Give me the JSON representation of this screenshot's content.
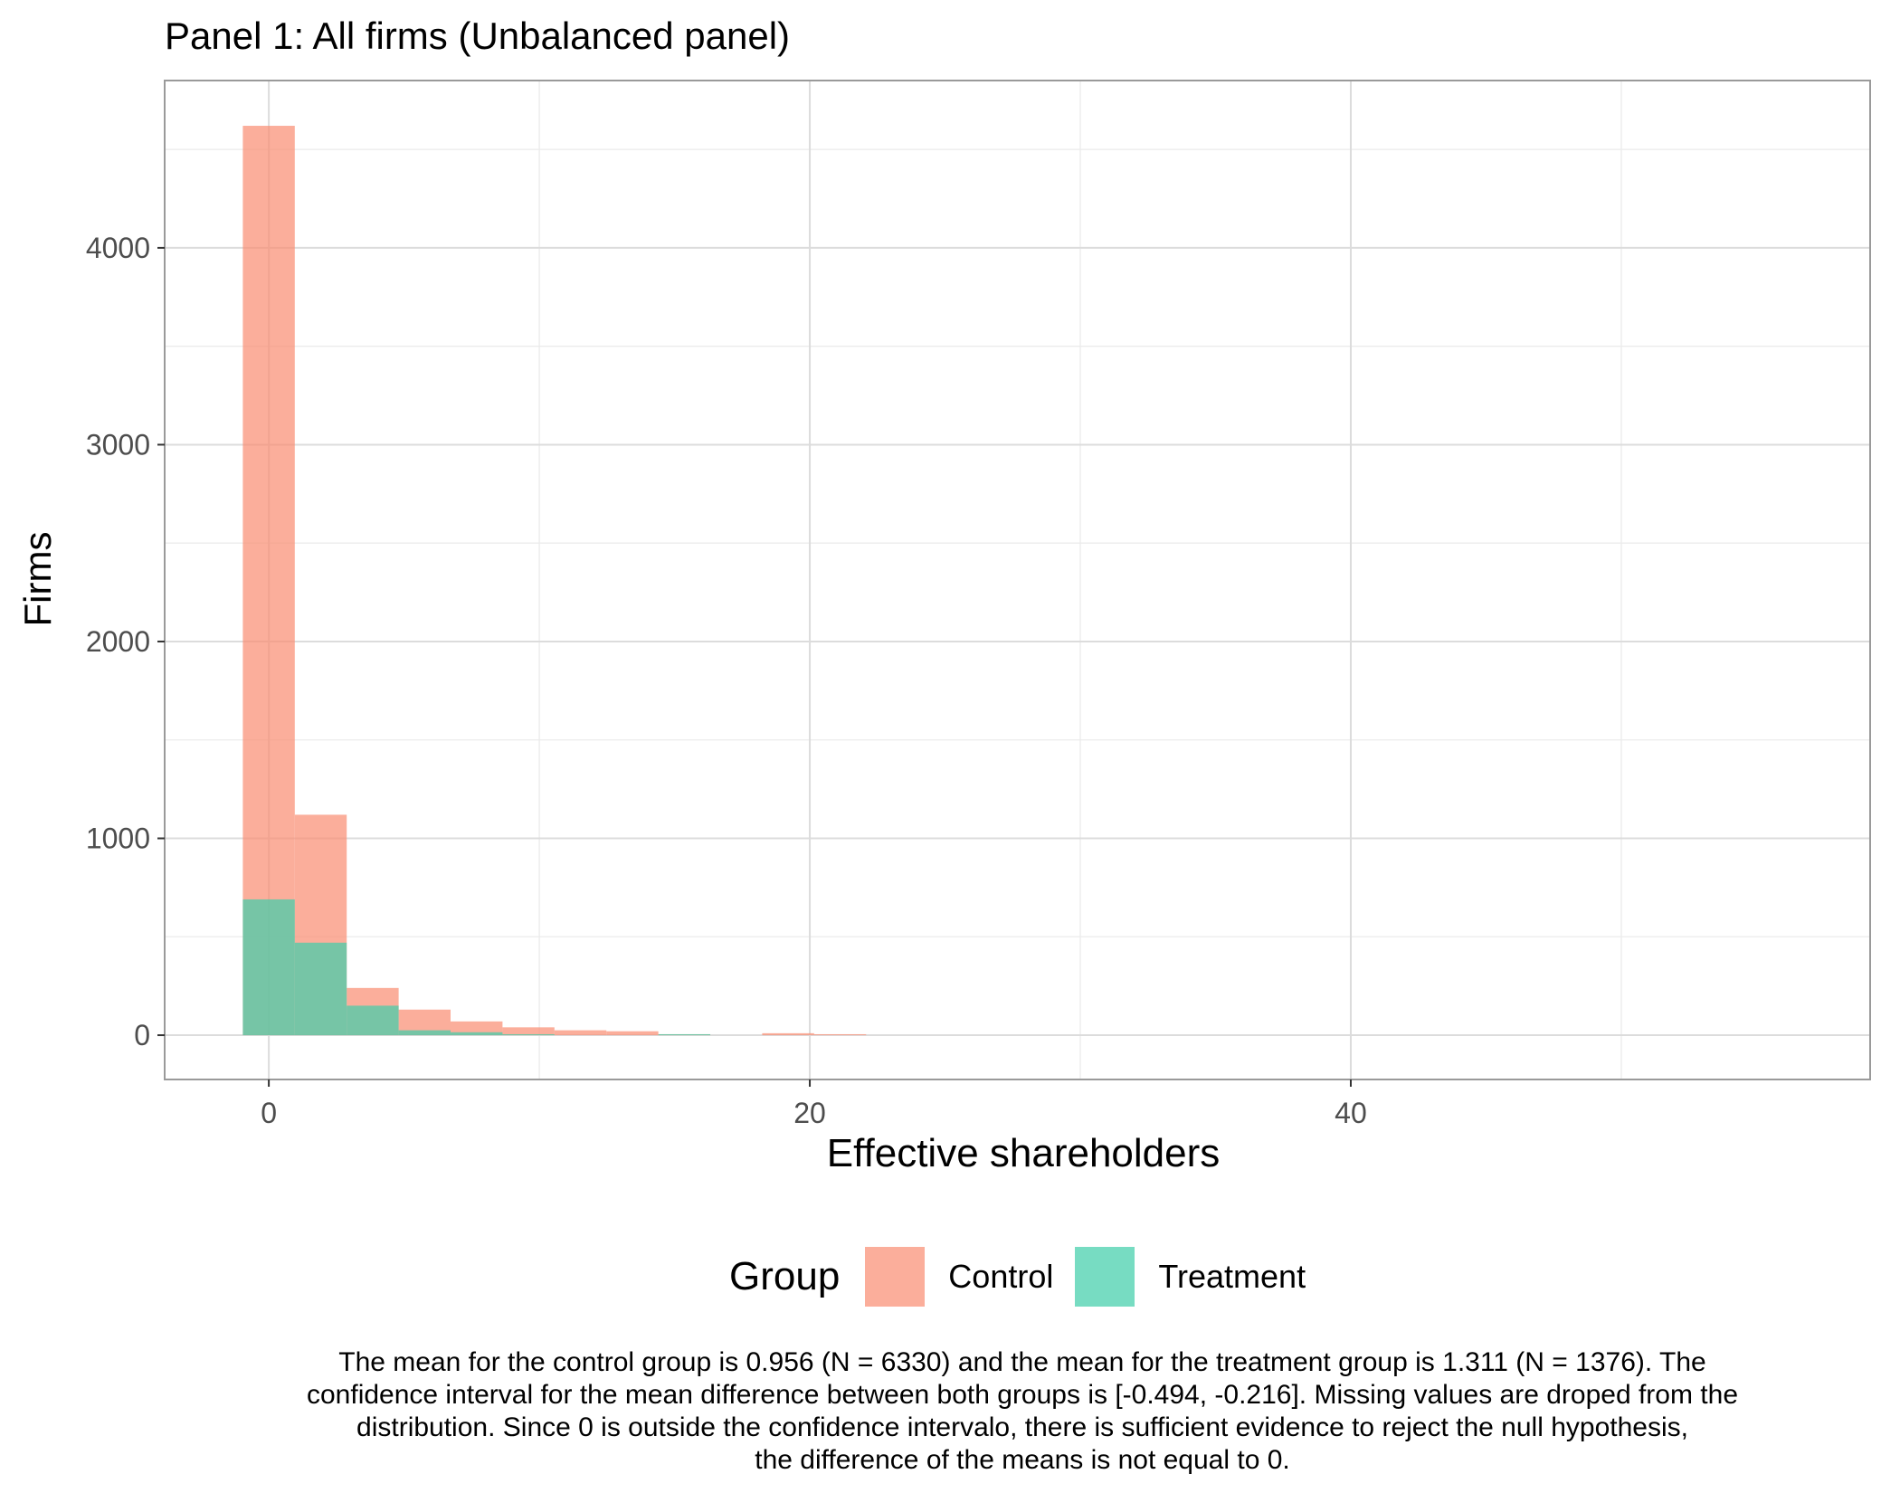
{
  "title": "Panel 1: All firms (Unbalanced panel)",
  "colors": {
    "control": "#FA8F75",
    "treatment": "#43CFAA",
    "grid": "#DCDCDC",
    "panel_border": "#9A9A9A",
    "tick_text": "#4D4D4D"
  },
  "legend": {
    "title": "Group",
    "items": [
      {
        "label": "Control",
        "color": "#FA8F75"
      },
      {
        "label": "Treatment",
        "color": "#43CFAA"
      }
    ]
  },
  "caption": {
    "lines": [
      "The mean for the control group is 0.956 (N = 6330) and the mean for the treatment group is 1.311 (N = 1376). The",
      "confidence interval for the mean difference between both groups is [-0.494, -0.216]. Missing values are droped from the",
      "distribution. Since 0 is outside the confidence intervalo, there is sufficient evidence to reject the null hypothesis,",
      "the difference of the means is not equal to 0."
    ]
  },
  "chart_data": {
    "type": "bar",
    "title": "Panel 1: All firms (Unbalanced panel)",
    "xlabel": "Effective shareholders",
    "ylabel": "Firms",
    "xlim": [
      -3.85,
      59.2
    ],
    "ylim": [
      -225,
      4850
    ],
    "x_ticks": [
      0,
      20,
      40
    ],
    "y_ticks": [
      0,
      1000,
      2000,
      3000,
      4000
    ],
    "grid": true,
    "legend_position": "bottom",
    "bin_width": 1.92,
    "series": [
      {
        "name": "Control",
        "bins": [
          {
            "x0": -0.96,
            "x1": 0.96,
            "value": 4620
          },
          {
            "x0": 0.96,
            "x1": 2.88,
            "value": 1120
          },
          {
            "x0": 2.88,
            "x1": 4.8,
            "value": 240
          },
          {
            "x0": 4.8,
            "x1": 6.72,
            "value": 130
          },
          {
            "x0": 6.72,
            "x1": 8.64,
            "value": 70
          },
          {
            "x0": 8.64,
            "x1": 10.56,
            "value": 40
          },
          {
            "x0": 10.56,
            "x1": 12.48,
            "value": 25
          },
          {
            "x0": 12.48,
            "x1": 14.4,
            "value": 20
          },
          {
            "x0": 14.4,
            "x1": 16.32,
            "value": 5
          },
          {
            "x0": 18.24,
            "x1": 20.16,
            "value": 10
          },
          {
            "x0": 20.16,
            "x1": 22.08,
            "value": 5
          }
        ]
      },
      {
        "name": "Treatment",
        "bins": [
          {
            "x0": -0.96,
            "x1": 0.96,
            "value": 690
          },
          {
            "x0": 0.96,
            "x1": 2.88,
            "value": 470
          },
          {
            "x0": 2.88,
            "x1": 4.8,
            "value": 150
          },
          {
            "x0": 4.8,
            "x1": 6.72,
            "value": 25
          },
          {
            "x0": 6.72,
            "x1": 8.64,
            "value": 15
          },
          {
            "x0": 8.64,
            "x1": 10.56,
            "value": 5
          },
          {
            "x0": 14.4,
            "x1": 16.32,
            "value": 5
          }
        ]
      }
    ]
  }
}
